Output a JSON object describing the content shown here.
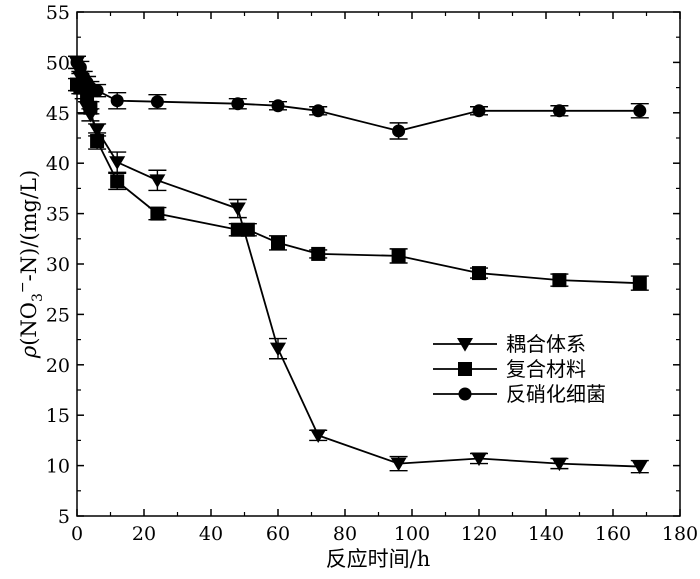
{
  "chart_data": {
    "type": "line",
    "title": "",
    "xlabel": "反应时间/h",
    "ylabel": {
      "rho": "ρ",
      "open": "(NO",
      "sub": "3",
      "sup": "−",
      "rest": "-N)/(mg/L)"
    },
    "xlim": [
      0,
      180
    ],
    "ylim": [
      5,
      55
    ],
    "xticks": [
      0,
      20,
      40,
      60,
      80,
      100,
      120,
      140,
      160,
      180
    ],
    "yticks": [
      5,
      10,
      15,
      20,
      25,
      30,
      35,
      40,
      45,
      50,
      55
    ],
    "grid": false,
    "legend_position": "center-right",
    "x": [
      0,
      1,
      2,
      3,
      4,
      6,
      12,
      24,
      48,
      51,
      60,
      72,
      96,
      120,
      144,
      168
    ],
    "series": [
      {
        "name": "耦合体系",
        "marker": "triangle-down",
        "x": [
          0,
          1,
          2,
          3,
          4,
          6,
          12,
          24,
          48,
          60,
          72,
          96,
          120,
          144,
          168
        ],
        "values": [
          50.0,
          48.5,
          47.0,
          45.5,
          44.8,
          43.3,
          40.1,
          38.3,
          35.5,
          21.6,
          13.0,
          10.2,
          10.7,
          10.2,
          9.9
        ],
        "errors": [
          0.6,
          0.6,
          0.6,
          0.6,
          0.6,
          0.6,
          1.0,
          1.0,
          0.9,
          1.0,
          0.5,
          0.7,
          0.5,
          0.5,
          0.6
        ]
      },
      {
        "name": "复合材料",
        "marker": "square",
        "x": [
          0,
          1,
          2,
          3,
          4,
          6,
          12,
          24,
          48,
          51,
          60,
          72,
          96,
          120,
          144,
          168
        ],
        "values": [
          47.8,
          47.5,
          47.5,
          46.7,
          45.5,
          42.2,
          38.2,
          35.0,
          33.4,
          33.4,
          32.1,
          31.0,
          30.8,
          29.1,
          28.4,
          28.1
        ],
        "errors": [
          0.6,
          0.6,
          0.6,
          0.6,
          0.6,
          0.8,
          0.8,
          0.6,
          0.6,
          0.6,
          0.7,
          0.4,
          0.7,
          0.5,
          0.6,
          0.7
        ]
      },
      {
        "name": "反硝化细菌",
        "marker": "circle",
        "x": [
          0,
          1,
          2,
          3,
          4,
          6,
          12,
          24,
          48,
          60,
          72,
          96,
          120,
          144,
          168
        ],
        "values": [
          50.0,
          49.5,
          48.5,
          48.0,
          47.5,
          47.2,
          46.2,
          46.1,
          45.9,
          45.7,
          45.2,
          43.2,
          45.2,
          45.2,
          45.2
        ],
        "errors": [
          0.6,
          0.6,
          0.6,
          0.6,
          0.6,
          0.6,
          0.8,
          0.7,
          0.5,
          0.4,
          0.4,
          0.8,
          0.4,
          0.5,
          0.7
        ]
      }
    ]
  }
}
